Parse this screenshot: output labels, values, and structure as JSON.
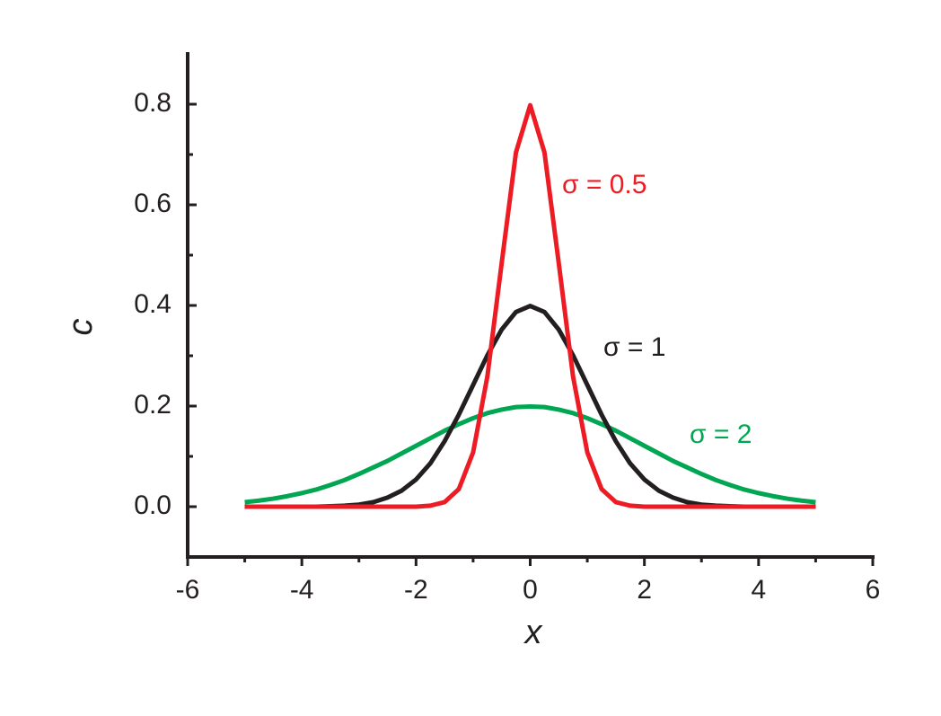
{
  "chart_data": {
    "type": "line",
    "xlabel": "x",
    "ylabel": "c",
    "x": [
      -5,
      -4.75,
      -4.5,
      -4.25,
      -4,
      -3.75,
      -3.5,
      -3.25,
      -3,
      -2.75,
      -2.5,
      -2.25,
      -2,
      -1.75,
      -1.5,
      -1.25,
      -1,
      -0.75,
      -0.5,
      -0.25,
      0,
      0.25,
      0.5,
      0.75,
      1,
      1.25,
      1.5,
      1.75,
      2,
      2.25,
      2.5,
      2.75,
      3,
      3.25,
      3.5,
      3.75,
      4,
      4.25,
      4.5,
      4.75,
      5
    ],
    "series": [
      {
        "name": "σ = 2",
        "color": "#00a651",
        "values": [
          0.009,
          0.012,
          0.016,
          0.021,
          0.027,
          0.034,
          0.043,
          0.053,
          0.065,
          0.078,
          0.091,
          0.106,
          0.121,
          0.136,
          0.151,
          0.164,
          0.176,
          0.186,
          0.193,
          0.198,
          0.199,
          0.198,
          0.193,
          0.186,
          0.176,
          0.164,
          0.151,
          0.136,
          0.121,
          0.106,
          0.091,
          0.078,
          0.065,
          0.053,
          0.043,
          0.034,
          0.027,
          0.021,
          0.016,
          0.012,
          0.009
        ]
      },
      {
        "name": "σ = 1",
        "color": "#231f20",
        "values": [
          0,
          0,
          0,
          0,
          0,
          0,
          0.001,
          0.002,
          0.004,
          0.009,
          0.018,
          0.032,
          0.054,
          0.086,
          0.13,
          0.183,
          0.242,
          0.301,
          0.352,
          0.387,
          0.399,
          0.387,
          0.352,
          0.301,
          0.242,
          0.183,
          0.13,
          0.086,
          0.054,
          0.032,
          0.018,
          0.009,
          0.004,
          0.002,
          0.001,
          0,
          0,
          0,
          0,
          0,
          0
        ]
      },
      {
        "name": "σ = 0.5",
        "color": "#ed1c24",
        "values": [
          0,
          0,
          0,
          0,
          0,
          0,
          0,
          0,
          0,
          0,
          0,
          0,
          0,
          0.002,
          0.009,
          0.035,
          0.108,
          0.259,
          0.484,
          0.704,
          0.798,
          0.704,
          0.484,
          0.259,
          0.108,
          0.035,
          0.009,
          0.002,
          0,
          0,
          0,
          0,
          0,
          0,
          0,
          0,
          0,
          0,
          0,
          0,
          0
        ]
      }
    ],
    "xlim": [
      -6,
      6
    ],
    "xticks": [
      -6,
      -4,
      -2,
      0,
      2,
      4,
      6
    ],
    "ylim": [
      -0.1,
      0.9
    ],
    "yticks": [
      {
        "value": 0,
        "label": "0.0"
      },
      0.2,
      0.4,
      0.6,
      0.8
    ],
    "grid": false
  }
}
